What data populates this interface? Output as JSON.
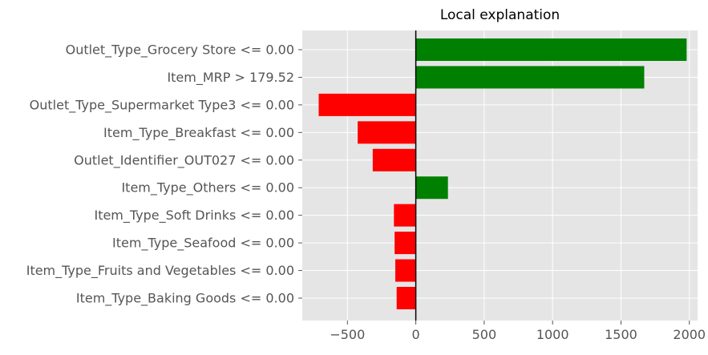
{
  "chart_data": {
    "type": "bar",
    "orientation": "horizontal",
    "title": "Local explanation",
    "xlabel": "",
    "ylabel": "",
    "categories": [
      "Outlet_Type_Grocery Store <= 0.00",
      "Item_MRP > 179.52",
      "Outlet_Type_Supermarket Type3 <= 0.00",
      "Item_Type_Breakfast <= 0.00",
      "Outlet_Identifier_OUT027 <= 0.00",
      "Item_Type_Others <= 0.00",
      "Item_Type_Soft Drinks <= 0.00",
      "Item_Type_Seafood <= 0.00",
      "Item_Type_Fruits and Vegetables <= 0.00",
      "Item_Type_Baking Goods <= 0.00"
    ],
    "values": [
      1980,
      1670,
      -710,
      -425,
      -315,
      235,
      -160,
      -155,
      -150,
      -140
    ],
    "xlim": [
      -830,
      2060
    ],
    "xticks": [
      -500,
      0,
      500,
      1000,
      1500,
      2000
    ],
    "xtick_labels": [
      "−500",
      "0",
      "500",
      "1000",
      "1500",
      "2000"
    ],
    "positive_color": "#008000",
    "negative_color": "#ff0000",
    "background_color": "#e5e5e5",
    "grid_color": "#ffffff",
    "grid": true,
    "zero_line_color": "#000000"
  }
}
